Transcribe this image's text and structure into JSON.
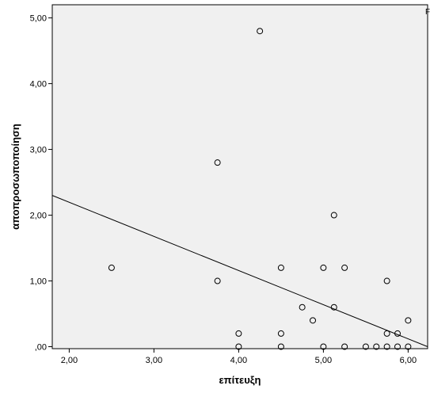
{
  "chart_data": {
    "type": "scatter",
    "xlabel": "επίτευξη",
    "ylabel": "αποπροσωποποίηση",
    "xlim": [
      1.8,
      6.23
    ],
    "ylim": [
      -0.03,
      5.2
    ],
    "x_ticks": [
      "2,00",
      "3,00",
      "4,00",
      "5,00",
      "6,00"
    ],
    "x_tick_values": [
      2,
      3,
      4,
      5,
      6
    ],
    "y_ticks": [
      ",00",
      "1,00",
      "2,00",
      "3,00",
      "4,00",
      "5,00"
    ],
    "y_tick_values": [
      0,
      1,
      2,
      3,
      4,
      5
    ],
    "corner_label": "F",
    "grid": false,
    "plot_background": "#f0f0f0",
    "marker": "hollow-circle",
    "points": [
      {
        "x": 2.5,
        "y": 1.2
      },
      {
        "x": 3.75,
        "y": 2.8
      },
      {
        "x": 3.75,
        "y": 1.0
      },
      {
        "x": 4.0,
        "y": 0.2
      },
      {
        "x": 4.0,
        "y": 0.0
      },
      {
        "x": 4.25,
        "y": 4.8
      },
      {
        "x": 4.5,
        "y": 1.2
      },
      {
        "x": 4.5,
        "y": 0.2
      },
      {
        "x": 4.5,
        "y": 0.0
      },
      {
        "x": 4.75,
        "y": 0.6
      },
      {
        "x": 4.875,
        "y": 0.4
      },
      {
        "x": 5.0,
        "y": 1.2
      },
      {
        "x": 5.0,
        "y": 0.0
      },
      {
        "x": 5.125,
        "y": 2.0
      },
      {
        "x": 5.125,
        "y": 0.6
      },
      {
        "x": 5.25,
        "y": 1.2
      },
      {
        "x": 5.25,
        "y": 0.0
      },
      {
        "x": 5.5,
        "y": 0.0
      },
      {
        "x": 5.625,
        "y": 0.0
      },
      {
        "x": 5.75,
        "y": 1.0
      },
      {
        "x": 5.75,
        "y": 0.2
      },
      {
        "x": 5.75,
        "y": 0.0
      },
      {
        "x": 5.875,
        "y": 0.2
      },
      {
        "x": 5.875,
        "y": 0.0
      },
      {
        "x": 6.0,
        "y": 0.4
      },
      {
        "x": 6.0,
        "y": 0.0
      }
    ],
    "fit_line": {
      "x": [
        1.8,
        6.23
      ],
      "y": [
        2.3,
        0.0
      ]
    }
  }
}
